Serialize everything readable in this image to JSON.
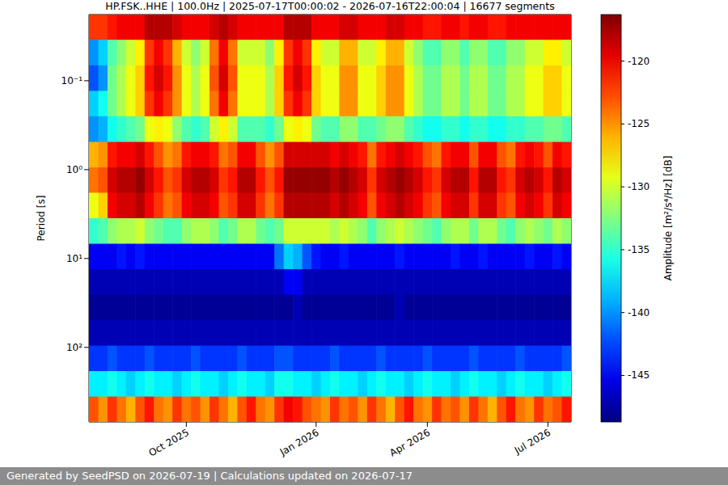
{
  "chart_data": {
    "type": "heatmap",
    "title": "HP.FSK..HHE | 100.0Hz | 2025-07-17T00:00:02 - 2026-07-16T22:00:04 | 16677 segments",
    "y_label": "Period [s]",
    "footer": "Generated by SeedPSD on 2026-07-19 | Calculations updated on 2026-07-17",
    "log": "y",
    "grid": true,
    "ylim": [
      0.018,
      690
    ],
    "yticks": [
      {
        "value": 0.1,
        "label": "10⁻¹"
      },
      {
        "value": 1,
        "label": "10⁰"
      },
      {
        "value": 10,
        "label": "10¹"
      },
      {
        "value": 100,
        "label": "10²"
      }
    ],
    "categories": [
      null,
      null,
      null,
      null,
      null,
      null,
      null,
      null,
      null,
      null,
      "Oct 2025",
      null,
      null,
      null,
      null,
      null,
      null,
      null,
      null,
      null,
      null,
      null,
      null,
      null,
      "Jan 2026",
      null,
      null,
      null,
      null,
      null,
      null,
      null,
      null,
      null,
      null,
      null,
      "Apr 2026",
      null,
      null,
      null,
      null,
      null,
      null,
      null,
      null,
      null,
      null,
      null,
      null,
      "Jul 2026",
      null,
      null
    ],
    "y": [
      0.025,
      0.048,
      0.094,
      0.18,
      0.35,
      0.68,
      1.31,
      2.53,
      4.9,
      9.5,
      18.3,
      35.5,
      68.6,
      133,
      257,
      497
    ],
    "values": [
      [
        -122,
        -122,
        -121,
        -120,
        -120,
        -120,
        -118,
        -118,
        -118,
        -119,
        -120,
        -120,
        -120,
        -119,
        -118,
        -119,
        -120,
        -120,
        -120,
        -120,
        -120,
        -118,
        -118,
        -118,
        -120,
        -120,
        -120,
        -119,
        -119,
        -120,
        -120,
        -120,
        -119,
        -119,
        -120,
        -120,
        -121,
        -121,
        -120,
        -120,
        -121,
        -120,
        -120,
        -121,
        -121,
        -120,
        -120,
        -120,
        -120,
        -120,
        -120,
        -120
      ],
      [
        -140,
        -138,
        -134,
        -132,
        -130,
        -128,
        -122,
        -120,
        -122,
        -126,
        -130,
        -132,
        -130,
        -124,
        -120,
        -124,
        -130,
        -130,
        -130,
        -132,
        -128,
        -122,
        -120,
        -122,
        -128,
        -130,
        -130,
        -126,
        -126,
        -130,
        -130,
        -128,
        -126,
        -126,
        -130,
        -132,
        -134,
        -134,
        -132,
        -132,
        -134,
        -132,
        -132,
        -134,
        -134,
        -132,
        -132,
        -130,
        -130,
        -128,
        -128,
        -130
      ],
      [
        -142,
        -140,
        -133,
        -131,
        -129,
        -127,
        -121,
        -119,
        -121,
        -125,
        -129,
        -131,
        -129,
        -123,
        -119,
        -123,
        -129,
        -129,
        -129,
        -131,
        -127,
        -121,
        -119,
        -121,
        -127,
        -129,
        -129,
        -125,
        -125,
        -129,
        -129,
        -127,
        -125,
        -125,
        -129,
        -131,
        -133,
        -133,
        -131,
        -131,
        -133,
        -131,
        -131,
        -133,
        -133,
        -131,
        -131,
        -129,
        -129,
        -127,
        -127,
        -129
      ],
      [
        -138,
        -136,
        -133,
        -131,
        -129,
        -127,
        -122,
        -120,
        -122,
        -125,
        -129,
        -131,
        -129,
        -124,
        -120,
        -124,
        -129,
        -129,
        -129,
        -131,
        -127,
        -122,
        -120,
        -122,
        -127,
        -129,
        -129,
        -125,
        -125,
        -129,
        -129,
        -127,
        -125,
        -125,
        -129,
        -131,
        -133,
        -133,
        -131,
        -131,
        -133,
        -131,
        -131,
        -133,
        -133,
        -131,
        -131,
        -129,
        -129,
        -127,
        -127,
        -129
      ],
      [
        -140,
        -139,
        -136,
        -135,
        -134,
        -133,
        -129,
        -128,
        -129,
        -132,
        -134,
        -135,
        -134,
        -130,
        -128,
        -130,
        -134,
        -134,
        -134,
        -135,
        -133,
        -129,
        -128,
        -129,
        -133,
        -134,
        -134,
        -132,
        -132,
        -134,
        -134,
        -133,
        -132,
        -132,
        -134,
        -135,
        -136,
        -136,
        -135,
        -135,
        -136,
        -135,
        -135,
        -136,
        -136,
        -135,
        -135,
        -134,
        -134,
        -133,
        -133,
        -134
      ],
      [
        -126,
        -125,
        -121,
        -120,
        -120,
        -119,
        -121,
        -123,
        -125,
        -124,
        -121,
        -120,
        -120,
        -121,
        -124,
        -123,
        -120,
        -120,
        -123,
        -125,
        -123,
        -119,
        -119,
        -119,
        -119,
        -119,
        -120,
        -119,
        -120,
        -121,
        -124,
        -121,
        -120,
        -119,
        -120,
        -121,
        -123,
        -124,
        -121,
        -120,
        -120,
        -123,
        -120,
        -120,
        -123,
        -124,
        -121,
        -120,
        -121,
        -123,
        -120,
        -121
      ],
      [
        -124,
        -123,
        -119,
        -118,
        -118,
        -117,
        -119,
        -121,
        -123,
        -122,
        -119,
        -118,
        -118,
        -119,
        -122,
        -121,
        -118,
        -118,
        -121,
        -123,
        -121,
        -117,
        -117,
        -117,
        -117,
        -117,
        -118,
        -117,
        -118,
        -119,
        -122,
        -119,
        -118,
        -117,
        -118,
        -119,
        -121,
        -122,
        -119,
        -118,
        -118,
        -121,
        -118,
        -118,
        -121,
        -122,
        -119,
        -118,
        -119,
        -121,
        -118,
        -119
      ],
      [
        -129,
        -127,
        -120,
        -119,
        -119,
        -118,
        -120,
        -122,
        -124,
        -123,
        -120,
        -119,
        -119,
        -120,
        -123,
        -122,
        -119,
        -119,
        -122,
        -124,
        -122,
        -118,
        -118,
        -118,
        -118,
        -118,
        -119,
        -118,
        -119,
        -120,
        -123,
        -120,
        -119,
        -118,
        -119,
        -120,
        -122,
        -123,
        -120,
        -119,
        -119,
        -122,
        -119,
        -119,
        -122,
        -123,
        -120,
        -119,
        -120,
        -122,
        -119,
        -120
      ],
      [
        -135,
        -134,
        -132,
        -131,
        -131,
        -130,
        -132,
        -133,
        -134,
        -134,
        -132,
        -131,
        -131,
        -132,
        -134,
        -133,
        -131,
        -131,
        -133,
        -134,
        -133,
        -130,
        -130,
        -130,
        -130,
        -130,
        -131,
        -130,
        -131,
        -132,
        -134,
        -132,
        -131,
        -130,
        -131,
        -132,
        -133,
        -134,
        -132,
        -131,
        -131,
        -133,
        -131,
        -131,
        -133,
        -134,
        -132,
        -131,
        -132,
        -133,
        -131,
        -132
      ],
      [
        -145,
        -145,
        -145,
        -144,
        -145,
        -144,
        -145,
        -145,
        -145,
        -145,
        -145,
        -145,
        -145,
        -145,
        -145,
        -145,
        -145,
        -145,
        -145,
        -145,
        -141,
        -138,
        -139,
        -142,
        -144,
        -145,
        -145,
        -144,
        -145,
        -145,
        -145,
        -145,
        -145,
        -144,
        -145,
        -145,
        -145,
        -145,
        -145,
        -144,
        -145,
        -145,
        -144,
        -145,
        -145,
        -145,
        -145,
        -144,
        -145,
        -145,
        -144,
        -145
      ],
      [
        -147,
        -147,
        -147,
        -147,
        -147,
        -147,
        -147,
        -147,
        -147,
        -147,
        -147,
        -147,
        -147,
        -147,
        -147,
        -147,
        -147,
        -147,
        -147,
        -147,
        -147,
        -145,
        -145,
        -147,
        -147,
        -147,
        -147,
        -147,
        -147,
        -147,
        -147,
        -147,
        -147,
        -147,
        -147,
        -147,
        -147,
        -147,
        -147,
        -147,
        -147,
        -147,
        -147,
        -147,
        -147,
        -147,
        -147,
        -147,
        -147,
        -147,
        -147,
        -147
      ],
      [
        -148,
        -148,
        -148,
        -148,
        -148,
        -148,
        -148,
        -148,
        -148,
        -148,
        -148,
        -148,
        -148,
        -148,
        -148,
        -148,
        -148,
        -148,
        -148,
        -148,
        -148,
        -148,
        -147,
        -148,
        -148,
        -148,
        -148,
        -148,
        -148,
        -148,
        -148,
        -148,
        -148,
        -147,
        -148,
        -148,
        -148,
        -148,
        -148,
        -148,
        -148,
        -148,
        -148,
        -148,
        -148,
        -148,
        -148,
        -148,
        -148,
        -148,
        -148,
        -148
      ],
      [
        -147,
        -147,
        -147,
        -147,
        -147,
        -147,
        -147,
        -147,
        -147,
        -147,
        -147,
        -147,
        -147,
        -147,
        -147,
        -147,
        -147,
        -147,
        -147,
        -147,
        -147,
        -147,
        -147,
        -147,
        -147,
        -147,
        -147,
        -147,
        -147,
        -147,
        -147,
        -147,
        -147,
        -147,
        -147,
        -147,
        -147,
        -147,
        -147,
        -147,
        -147,
        -147,
        -147,
        -147,
        -147,
        -147,
        -147,
        -147,
        -147,
        -147,
        -147,
        -147
      ],
      [
        -143,
        -143,
        -142,
        -143,
        -143,
        -143,
        -142,
        -143,
        -143,
        -143,
        -143,
        -142,
        -143,
        -143,
        -143,
        -143,
        -142,
        -143,
        -143,
        -143,
        -142,
        -142,
        -143,
        -143,
        -143,
        -143,
        -142,
        -143,
        -143,
        -143,
        -143,
        -142,
        -143,
        -143,
        -143,
        -143,
        -142,
        -143,
        -143,
        -143,
        -143,
        -142,
        -143,
        -143,
        -143,
        -143,
        -142,
        -143,
        -143,
        -143,
        -143,
        -142
      ],
      [
        -137,
        -137,
        -136,
        -137,
        -138,
        -137,
        -136,
        -137,
        -137,
        -138,
        -137,
        -136,
        -137,
        -137,
        -138,
        -137,
        -136,
        -137,
        -137,
        -138,
        -136,
        -136,
        -137,
        -137,
        -138,
        -137,
        -136,
        -137,
        -137,
        -138,
        -137,
        -136,
        -137,
        -137,
        -138,
        -137,
        -136,
        -137,
        -137,
        -138,
        -137,
        -136,
        -137,
        -137,
        -138,
        -137,
        -136,
        -137,
        -137,
        -138,
        -137,
        -136
      ],
      [
        -123,
        -125,
        -122,
        -124,
        -126,
        -123,
        -121,
        -124,
        -125,
        -122,
        -124,
        -123,
        -125,
        -122,
        -124,
        -126,
        -123,
        -121,
        -124,
        -125,
        -122,
        -120,
        -121,
        -123,
        -124,
        -125,
        -122,
        -124,
        -123,
        -125,
        -122,
        -124,
        -126,
        -123,
        -121,
        -124,
        -125,
        -122,
        -124,
        -123,
        -125,
        -122,
        -124,
        -126,
        -123,
        -121,
        -124,
        -125,
        -122,
        -124,
        -123,
        -121
      ]
    ],
    "colorbar": {
      "label": "Amplitude [m²/s⁴/Hz] [dB]",
      "range": [
        -148.7,
        -116.3
      ],
      "ticks": [
        -145,
        -140,
        -135,
        -130,
        -125,
        -120
      ]
    }
  }
}
